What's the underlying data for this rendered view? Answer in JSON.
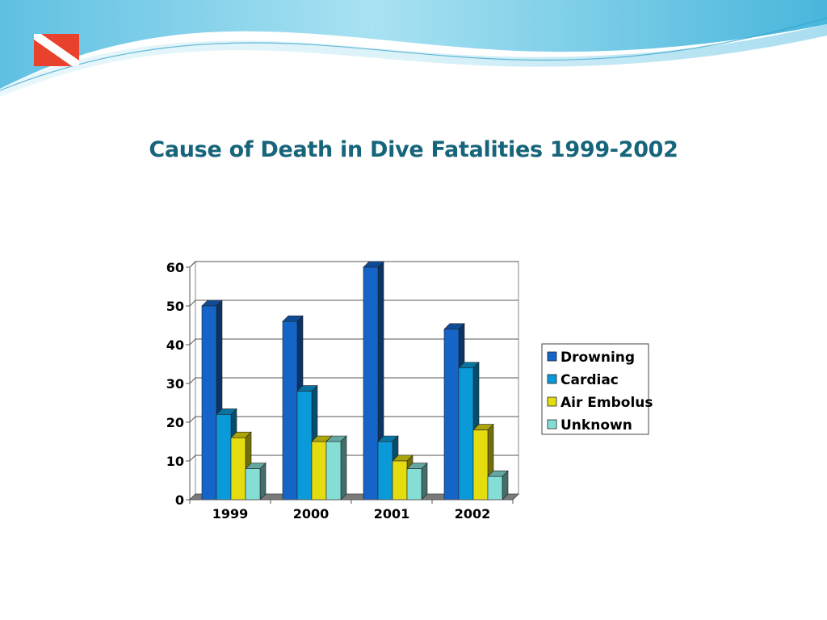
{
  "slide": {
    "title": "Cause of Death in Dive Fatalities 1999-2002"
  },
  "colors": {
    "title": "#17657a",
    "wave_dark": "#4ab6dc",
    "wave_light": "#bfe9f5",
    "flag_red": "#e8412c",
    "flag_white": "#ffffff"
  },
  "chart_data": {
    "type": "bar",
    "style": "3d-clustered-column",
    "title": "Cause of Death in Dive Fatalities 1999-2002",
    "categories": [
      "1999",
      "2000",
      "2001",
      "2002"
    ],
    "series": [
      {
        "name": "Drowning",
        "values": [
          50,
          46,
          60,
          44
        ],
        "color": "#1565c8"
      },
      {
        "name": "Cardiac",
        "values": [
          22,
          28,
          15,
          34
        ],
        "color": "#0b9ad9"
      },
      {
        "name": "Air Embolus",
        "values": [
          16,
          15,
          10,
          18
        ],
        "color": "#e4dc0f"
      },
      {
        "name": "Unknown",
        "values": [
          8,
          15,
          8,
          6
        ],
        "color": "#85ded6"
      }
    ],
    "yticks": [
      "0",
      "10",
      "20",
      "30",
      "40",
      "50",
      "60"
    ],
    "ylim": [
      0,
      60
    ],
    "grid": true,
    "legend_position": "right",
    "xlabel": "",
    "ylabel": ""
  }
}
